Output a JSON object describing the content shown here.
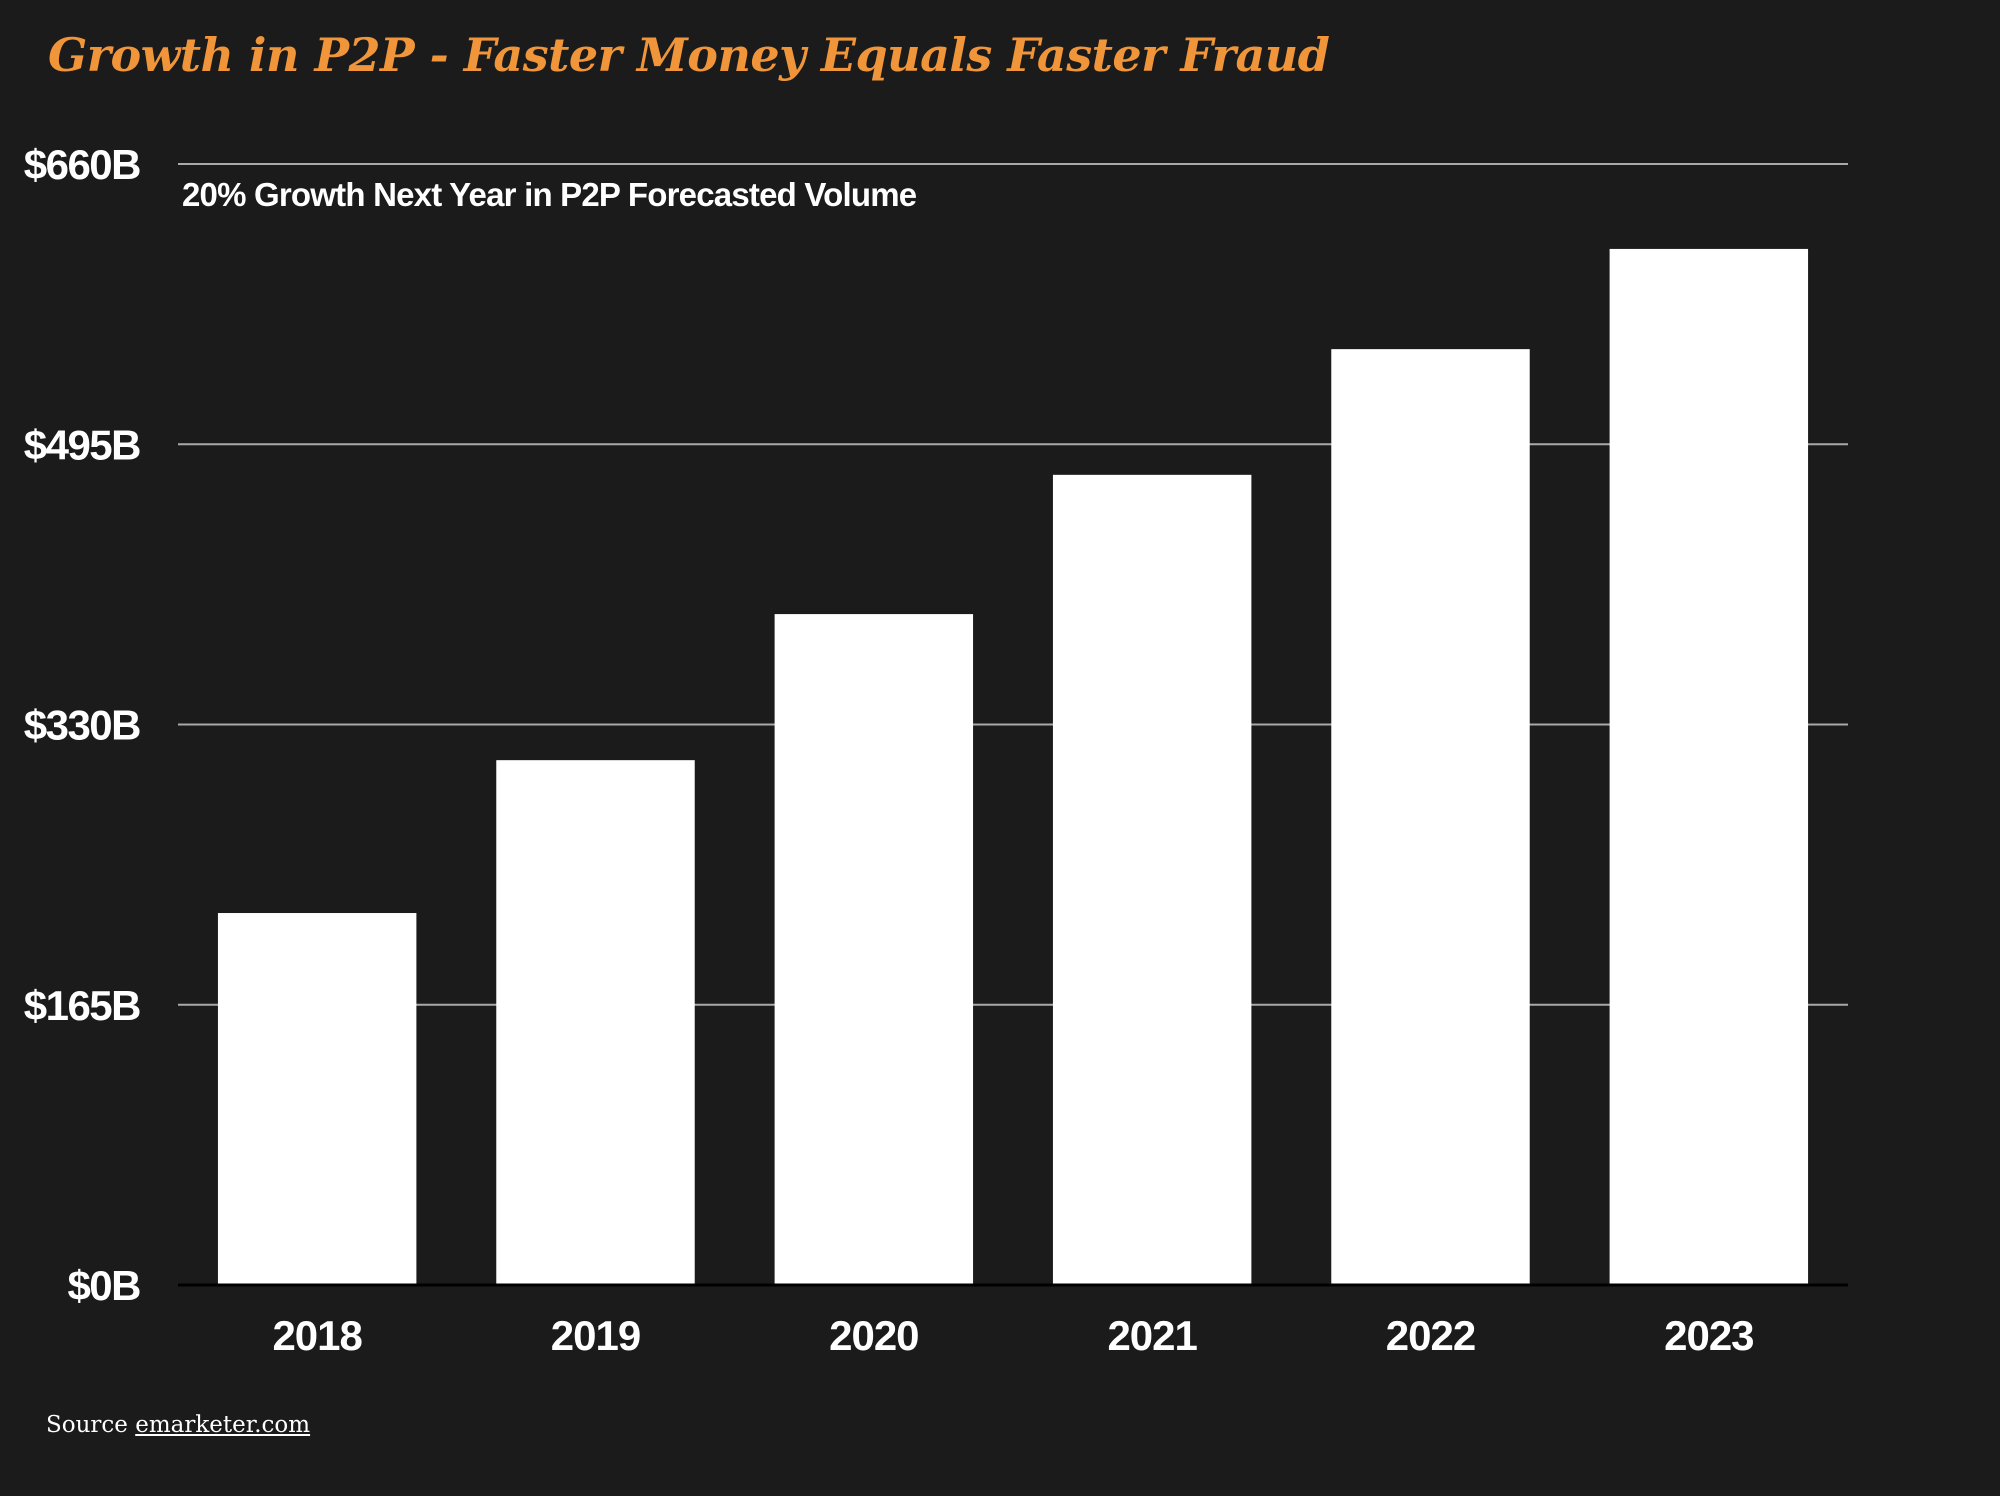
{
  "title": "Growth in P2P - Faster Money Equals Faster Fraud",
  "source": {
    "prefix": "Source",
    "link_text": "emarketer.com"
  },
  "colors": {
    "background": "#1a1b1a",
    "title": "#f0953a",
    "bars": "#ffffff",
    "gridlines": "#a9a9a9",
    "text": "#ffffff"
  },
  "chart_data": {
    "type": "bar",
    "title": "",
    "xlabel": "",
    "ylabel": "",
    "annotation": "20% Growth Next Year in P2P Forecasted Volume",
    "categories": [
      "2018",
      "2019",
      "2020",
      "2021",
      "2022",
      "2023"
    ],
    "values": [
      219,
      309,
      395,
      477,
      551,
      610
    ],
    "unit": "$B",
    "ylim": [
      0,
      660
    ],
    "yticks": [
      0,
      165,
      330,
      495,
      660
    ],
    "ytick_labels": [
      "$0B",
      "$165B",
      "$330B",
      "$495B",
      "$660B"
    ],
    "grid": true,
    "legend": "none"
  }
}
